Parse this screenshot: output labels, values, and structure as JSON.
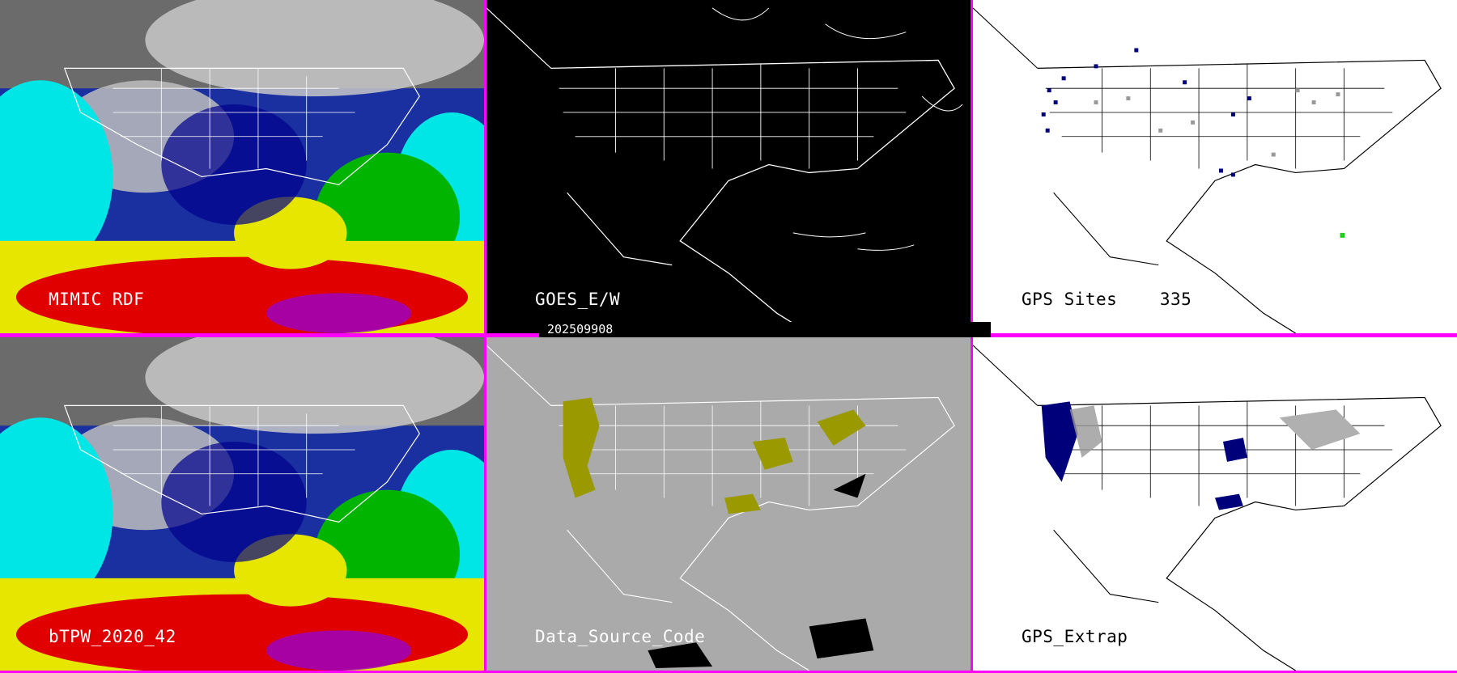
{
  "colors": {
    "divider": "#ff00ff",
    "goes_bg": "#000000",
    "source_bg": "#aaaaaa",
    "gps_bg": "#ffffff",
    "source_code_fill": "#9a9a00",
    "gps_site_dark": "#00007a",
    "gps_site_gray": "#999999"
  },
  "panels": [
    {
      "id": "mimic-rdf",
      "label": "MIMIC RDF",
      "style": "tpw"
    },
    {
      "id": "goes-ew",
      "label": "GOES_E/W",
      "style": "outline-dark"
    },
    {
      "id": "gps-sites",
      "label": "GPS Sites    335",
      "style": "sites"
    },
    {
      "id": "btpw",
      "label": "bTPW_2020_42",
      "style": "tpw"
    },
    {
      "id": "data-source",
      "label": "Data_Source_Code",
      "style": "source"
    },
    {
      "id": "gps-extrap",
      "label": "GPS_Extrap",
      "style": "extrap"
    }
  ],
  "date_stamp": "202509908"
}
